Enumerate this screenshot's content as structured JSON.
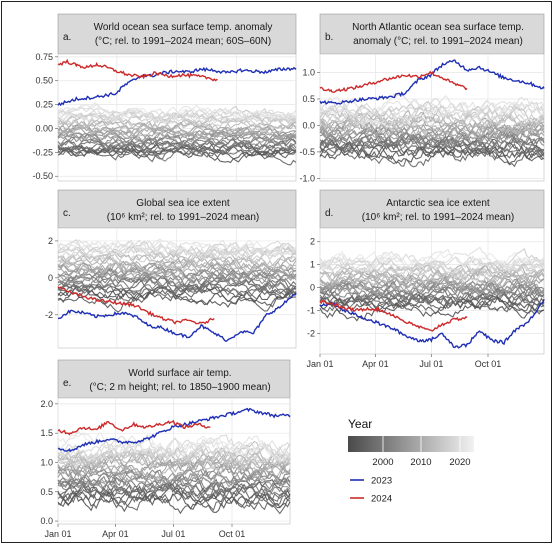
{
  "chart_data": [
    {
      "type": "line",
      "id": "a",
      "title_lines": [
        "World ocean sea surface temp. anomaly",
        "(°C; rel. to 1991–2024 mean; 60S–60N)"
      ],
      "panel_letter": "a.",
      "x_ticks": [
        "Jan 01",
        "Apr 01",
        "Jul 01",
        "Oct 01"
      ],
      "x_tick_doy": [
        1,
        91,
        182,
        274
      ],
      "x_labels_shown": false,
      "ylim": [
        -0.55,
        0.78
      ],
      "y_ticks": [
        0.75,
        0.5,
        0.25,
        0.0,
        -0.25,
        -0.5
      ],
      "y_tick_labels": [
        "0.75",
        "0.50",
        "0.25",
        "0.00",
        "-0.25",
        "-0.50"
      ],
      "series": [
        {
          "year": 2023,
          "color": "#1f2fb4",
          "x": [
            1,
            30,
            60,
            91,
            100,
            110,
            120,
            130,
            140,
            150,
            160,
            182,
            200,
            220,
            240,
            260,
            280,
            300,
            320,
            340,
            365
          ],
          "values": [
            0.25,
            0.31,
            0.33,
            0.37,
            0.44,
            0.48,
            0.52,
            0.56,
            0.55,
            0.56,
            0.58,
            0.6,
            0.59,
            0.62,
            0.61,
            0.58,
            0.61,
            0.6,
            0.59,
            0.62,
            0.63
          ]
        },
        {
          "year": 2024,
          "color": "#cc2a2a",
          "x": [
            1,
            15,
            30,
            45,
            60,
            75,
            91,
            110,
            130,
            150,
            170,
            190,
            210,
            230,
            245
          ],
          "values": [
            0.67,
            0.7,
            0.66,
            0.64,
            0.67,
            0.64,
            0.6,
            0.56,
            0.54,
            0.58,
            0.55,
            0.56,
            0.55,
            0.53,
            0.51
          ]
        }
      ],
      "gray_band": {
        "center": -0.05,
        "spread": 0.25,
        "noise": 0.05
      }
    },
    {
      "type": "line",
      "id": "b",
      "title_lines": [
        "North Atlantic ocean sea surface temp.",
        "anomaly (°C; rel. to 1991–2024 mean)"
      ],
      "panel_letter": "b.",
      "x_ticks": [
        "Jan 01",
        "Apr 01",
        "Jul 01",
        "Oct 01"
      ],
      "x_tick_doy": [
        1,
        91,
        182,
        274
      ],
      "x_labels_shown": false,
      "ylim": [
        -1.05,
        1.35
      ],
      "y_ticks": [
        1.0,
        0.5,
        0.0,
        -0.5,
        -1.0
      ],
      "y_tick_labels": [
        "1.0",
        "0.5",
        "0.0",
        "-0.5",
        "-1.0"
      ],
      "series": [
        {
          "year": 2023,
          "color": "#1f2fb4",
          "x": [
            1,
            20,
            40,
            60,
            80,
            100,
            120,
            140,
            160,
            180,
            200,
            220,
            240,
            260,
            280,
            300,
            320,
            340,
            365
          ],
          "values": [
            0.45,
            0.42,
            0.44,
            0.48,
            0.5,
            0.52,
            0.55,
            0.62,
            0.85,
            0.95,
            1.15,
            1.22,
            1.05,
            1.1,
            1.0,
            0.9,
            0.85,
            0.8,
            0.7
          ]
        },
        {
          "year": 2024,
          "color": "#cc2a2a",
          "x": [
            1,
            20,
            40,
            60,
            80,
            100,
            120,
            140,
            160,
            180,
            200,
            220,
            240
          ],
          "values": [
            0.7,
            0.65,
            0.68,
            0.72,
            0.78,
            0.85,
            0.9,
            0.95,
            0.92,
            1.0,
            0.9,
            0.78,
            0.7
          ]
        }
      ],
      "gray_band": {
        "center": -0.1,
        "spread": 0.5,
        "noise": 0.12
      }
    },
    {
      "type": "line",
      "id": "c",
      "title_lines": [
        "Global sea ice extent",
        "(10⁶ km²; rel. to 1991–2024 mean)"
      ],
      "panel_letter": "c.",
      "x_ticks": [
        "Jan 01",
        "Apr 01",
        "Jul 01",
        "Oct 01"
      ],
      "x_tick_doy": [
        1,
        91,
        182,
        274
      ],
      "x_labels_shown": false,
      "ylim": [
        -3.8,
        2.7
      ],
      "y_ticks": [
        2,
        0,
        -2
      ],
      "y_tick_labels": [
        "2",
        "0",
        "-2"
      ],
      "series": [
        {
          "year": 2023,
          "color": "#1f2fb4",
          "x": [
            1,
            20,
            40,
            60,
            80,
            100,
            120,
            140,
            160,
            180,
            200,
            220,
            240,
            260,
            280,
            300,
            320,
            340,
            365
          ],
          "values": [
            -2.2,
            -1.8,
            -1.9,
            -2.1,
            -2.0,
            -1.9,
            -2.1,
            -2.6,
            -2.7,
            -3.0,
            -3.2,
            -2.6,
            -3.0,
            -3.4,
            -2.9,
            -3.0,
            -2.0,
            -1.6,
            -0.8
          ]
        },
        {
          "year": 2024,
          "color": "#cc2a2a",
          "x": [
            1,
            20,
            40,
            60,
            80,
            100,
            120,
            140,
            160,
            180,
            200,
            220,
            240
          ],
          "values": [
            -0.5,
            -0.8,
            -1.0,
            -1.2,
            -1.3,
            -1.4,
            -1.5,
            -1.9,
            -2.2,
            -2.4,
            -2.3,
            -2.5,
            -2.2
          ]
        }
      ],
      "gray_band": {
        "center": 0.4,
        "spread": 1.6,
        "noise": 0.3
      }
    },
    {
      "type": "line",
      "id": "d",
      "title_lines": [
        "Antarctic sea ice extent",
        "(10⁶ km²; rel. to 1991–2024 mean)"
      ],
      "panel_letter": "d.",
      "x_ticks": [
        "Jan 01",
        "Apr 01",
        "Jul 01",
        "Oct 01"
      ],
      "x_tick_doy": [
        1,
        91,
        182,
        274
      ],
      "x_labels_shown": true,
      "ylim": [
        -2.9,
        2.6
      ],
      "y_ticks": [
        2,
        1,
        0,
        -1,
        -2
      ],
      "y_tick_labels": [
        "2",
        "1",
        "0",
        "-1",
        "-2"
      ],
      "series": [
        {
          "year": 2023,
          "color": "#1f2fb4",
          "x": [
            1,
            20,
            40,
            60,
            80,
            100,
            120,
            140,
            160,
            180,
            200,
            220,
            240,
            260,
            280,
            300,
            320,
            340,
            365
          ],
          "values": [
            -0.8,
            -0.7,
            -1.0,
            -1.2,
            -1.4,
            -1.6,
            -1.8,
            -2.1,
            -2.3,
            -2.3,
            -2.0,
            -2.6,
            -2.5,
            -1.9,
            -2.3,
            -2.4,
            -1.8,
            -1.5,
            -0.5
          ]
        },
        {
          "year": 2024,
          "color": "#cc2a2a",
          "x": [
            1,
            20,
            40,
            60,
            80,
            100,
            120,
            140,
            160,
            180,
            200,
            220,
            240
          ],
          "values": [
            -0.6,
            -0.7,
            -0.9,
            -1.0,
            -0.9,
            -1.0,
            -1.2,
            -1.5,
            -1.7,
            -1.9,
            -1.6,
            -1.4,
            -1.3
          ]
        }
      ],
      "gray_band": {
        "center": 0.2,
        "spread": 1.1,
        "noise": 0.25
      }
    },
    {
      "type": "line",
      "id": "e",
      "title_lines": [
        "World surface air temp.",
        "(°C; 2 m height; rel. to 1850–1900 mean)"
      ],
      "panel_letter": "e.",
      "x_ticks": [
        "Jan 01",
        "Apr 01",
        "Jul 01",
        "Oct 01"
      ],
      "x_tick_doy": [
        1,
        91,
        182,
        274
      ],
      "x_labels_shown": true,
      "ylim": [
        -0.05,
        2.1
      ],
      "y_ticks": [
        2.0,
        1.5,
        1.0,
        0.5,
        0.0
      ],
      "y_tick_labels": [
        "2.0",
        "1.5",
        "1.0",
        "0.5",
        "0.0"
      ],
      "series": [
        {
          "year": 2023,
          "color": "#1f2fb4",
          "x": [
            1,
            20,
            40,
            60,
            80,
            100,
            120,
            140,
            160,
            180,
            200,
            220,
            240,
            260,
            280,
            300,
            320,
            340,
            365
          ],
          "values": [
            1.25,
            1.2,
            1.3,
            1.35,
            1.4,
            1.35,
            1.35,
            1.4,
            1.5,
            1.6,
            1.65,
            1.7,
            1.75,
            1.8,
            1.85,
            1.9,
            1.85,
            1.8,
            1.8
          ]
        },
        {
          "year": 2024,
          "color": "#cc2a2a",
          "x": [
            1,
            20,
            40,
            60,
            80,
            100,
            120,
            140,
            160,
            180,
            200,
            220,
            240
          ],
          "values": [
            1.55,
            1.5,
            1.6,
            1.55,
            1.7,
            1.55,
            1.65,
            1.6,
            1.65,
            1.7,
            1.6,
            1.65,
            1.6
          ]
        }
      ],
      "gray_band": {
        "center": 0.85,
        "spread": 0.55,
        "noise": 0.12
      }
    }
  ],
  "legend": {
    "title": "Year",
    "gradient_ticks": [
      "2000",
      "2010",
      "2020"
    ],
    "gradient_from": "#4a4a4a",
    "gradient_to": "#f2f2f2",
    "entries": [
      {
        "label": "2023",
        "color": "#1f2fb4"
      },
      {
        "label": "2024",
        "color": "#cc2a2a"
      }
    ]
  }
}
